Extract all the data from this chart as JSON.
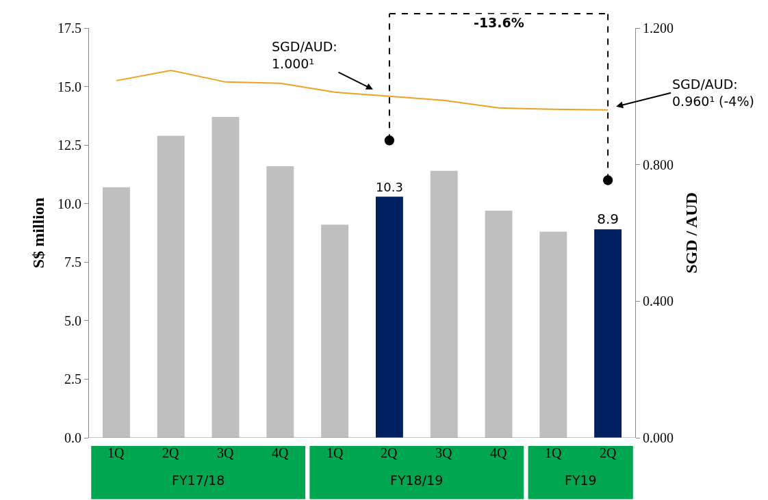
{
  "chart_data": {
    "type": "bar",
    "ylabel": "S$ million",
    "y2label": "SGD / AUD",
    "categories": [
      "1Q",
      "2Q",
      "3Q",
      "4Q",
      "1Q",
      "2Q",
      "3Q",
      "4Q",
      "1Q",
      "2Q"
    ],
    "series": [
      {
        "colors": [
          "#bfbfbf",
          "#bfbfbf",
          "#bfbfbf",
          "#bfbfbf",
          "#bfbfbf",
          "#002060",
          "#bfbfbf",
          "#bfbfbf",
          "#bfbfbf",
          "#002060"
        ],
        "values": [
          10.7,
          12.9,
          13.7,
          11.6,
          9.1,
          10.3,
          11.4,
          9.7,
          8.8,
          8.9
        ],
        "value_labels": [
          null,
          null,
          null,
          null,
          null,
          "10.3",
          null,
          null,
          null,
          "8.9"
        ]
      },
      {
        "type": "line",
        "axis": "y2",
        "color": "#f0a020",
        "values": [
          1.046,
          1.076,
          1.042,
          1.038,
          1.012,
          1.0,
          0.988,
          0.966,
          0.962,
          0.96
        ]
      }
    ],
    "ylim": [
      0,
      17.5
    ],
    "yticks": [
      {
        "value": 0,
        "label": "0.0"
      },
      2.5,
      {
        "value": 5,
        "label": "5.0"
      },
      7.5,
      {
        "value": 10,
        "label": "10.0"
      },
      12.5,
      {
        "value": 15,
        "label": "15.0"
      },
      17.5
    ],
    "y2lim": [
      0,
      1.2
    ],
    "y2ticks": [
      {
        "value": 0,
        "label": "0.000"
      },
      {
        "value": 0.4,
        "label": "0.400"
      },
      {
        "value": 0.8,
        "label": "0.800"
      },
      {
        "value": 1.2,
        "label": "1.200"
      }
    ],
    "annotations": [
      "SGD/AUD:\n1.000¹",
      "SGD/AUD:\n0.960¹ (-4%)",
      "-13.6%",
      "FY17/18",
      "FY18/19",
      "FY19"
    ],
    "legend": false,
    "marker": "none"
  }
}
